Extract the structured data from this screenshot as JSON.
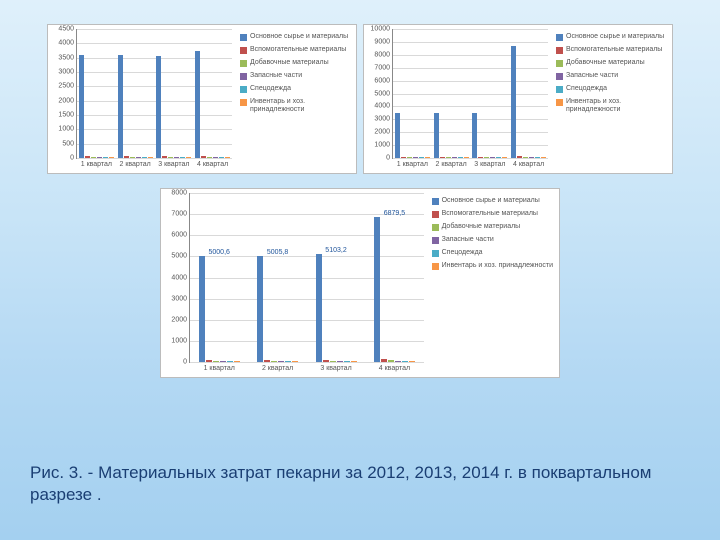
{
  "series": [
    {
      "key": "s1",
      "label": "Основное сырье и материалы",
      "color": "#4f81bd"
    },
    {
      "key": "s2",
      "label": "Вспомогательные материалы",
      "color": "#c0504d"
    },
    {
      "key": "s3",
      "label": "Добавочные материалы",
      "color": "#9bbb59"
    },
    {
      "key": "s4",
      "label": "Запасные части",
      "color": "#8064a2"
    },
    {
      "key": "s5",
      "label": "Спецодежда",
      "color": "#4bacc6"
    },
    {
      "key": "s6",
      "label": "Инвентарь и хоз. принадлежности",
      "color": "#f79646"
    }
  ],
  "charts": [
    {
      "id": "c1",
      "size": "small",
      "ymax": 4500,
      "ytick": 500,
      "grid_color": "#d9d9d9",
      "categories": [
        "1 квартал",
        "2 квартал",
        "3 квартал",
        "4 квартал"
      ],
      "data": {
        "s1": [
          3600,
          3600,
          3550,
          3750
        ],
        "s2": [
          60,
          60,
          60,
          80
        ],
        "s3": [
          40,
          40,
          40,
          50
        ],
        "s4": [
          30,
          30,
          30,
          30
        ],
        "s5": [
          30,
          30,
          30,
          30
        ],
        "s6": [
          30,
          30,
          30,
          30
        ]
      }
    },
    {
      "id": "c2",
      "size": "small",
      "ymax": 10000,
      "ytick": 1000,
      "grid_color": "#d9d9d9",
      "categories": [
        "1 квартал",
        "2 квартал",
        "3 квартал",
        "4 квартал"
      ],
      "data": {
        "s1": [
          3500,
          3500,
          3500,
          8700
        ],
        "s2": [
          70,
          70,
          70,
          120
        ],
        "s3": [
          50,
          50,
          50,
          90
        ],
        "s4": [
          40,
          40,
          40,
          60
        ],
        "s5": [
          40,
          40,
          40,
          60
        ],
        "s6": [
          40,
          40,
          40,
          60
        ]
      }
    },
    {
      "id": "c3",
      "size": "big",
      "ymax": 8000,
      "ytick": 1000,
      "grid_color": "#d9d9d9",
      "categories": [
        "1 квартал",
        "2 квартал",
        "3 квартал",
        "4 квартал"
      ],
      "data_labels": [
        "5000,6",
        "5005,8",
        "5103,2",
        "6879,5"
      ],
      "data": {
        "s1": [
          5000.6,
          5005.8,
          5103.2,
          6879.5
        ],
        "s2": [
          90,
          90,
          95,
          120
        ],
        "s3": [
          60,
          60,
          65,
          90
        ],
        "s4": [
          50,
          50,
          50,
          70
        ],
        "s5": [
          50,
          50,
          50,
          70
        ],
        "s6": [
          50,
          50,
          50,
          70
        ]
      }
    }
  ],
  "caption": "Рис. 3. - Материальных затрат пекарни за 2012, 2013, 2014 г. в поквартальном разрезе ."
}
